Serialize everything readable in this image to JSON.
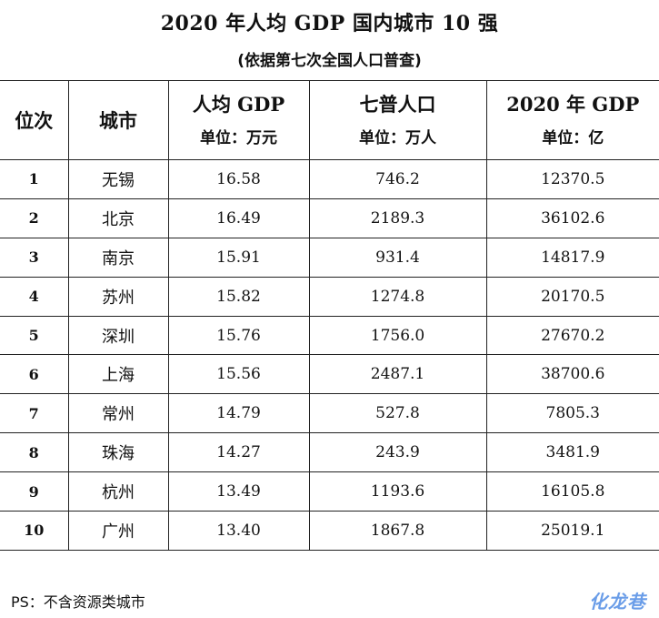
{
  "title": "2020 年人均 GDP 国内城市 10 强",
  "subtitle": "(依据第七次全国人口普查)",
  "table": {
    "headers": {
      "rank": "位次",
      "city": "城市",
      "gdp_per_capita": "人均 GDP",
      "gdp_per_capita_unit": "单位：万元",
      "population": "七普人口",
      "population_unit": "单位：万人",
      "gdp_total": "2020 年 GDP",
      "gdp_total_unit": "单位：亿"
    },
    "rows": [
      {
        "rank": "1",
        "city": "无锡",
        "gdp_per_capita": "16.58",
        "population": "746.2",
        "gdp_total": "12370.5"
      },
      {
        "rank": "2",
        "city": "北京",
        "gdp_per_capita": "16.49",
        "population": "2189.3",
        "gdp_total": "36102.6"
      },
      {
        "rank": "3",
        "city": "南京",
        "gdp_per_capita": "15.91",
        "population": "931.4",
        "gdp_total": "14817.9"
      },
      {
        "rank": "4",
        "city": "苏州",
        "gdp_per_capita": "15.82",
        "population": "1274.8",
        "gdp_total": "20170.5"
      },
      {
        "rank": "5",
        "city": "深圳",
        "gdp_per_capita": "15.76",
        "population": "1756.0",
        "gdp_total": "27670.2"
      },
      {
        "rank": "6",
        "city": "上海",
        "gdp_per_capita": "15.56",
        "population": "2487.1",
        "gdp_total": "38700.6"
      },
      {
        "rank": "7",
        "city": "常州",
        "gdp_per_capita": "14.79",
        "population": "527.8",
        "gdp_total": "7805.3"
      },
      {
        "rank": "8",
        "city": "珠海",
        "gdp_per_capita": "14.27",
        "population": "243.9",
        "gdp_total": "3481.9"
      },
      {
        "rank": "9",
        "city": "杭州",
        "gdp_per_capita": "13.49",
        "population": "1193.6",
        "gdp_total": "16105.8"
      },
      {
        "rank": "10",
        "city": "广州",
        "gdp_per_capita": "13.40",
        "population": "1867.8",
        "gdp_total": "25019.1"
      }
    ]
  },
  "footnote": "PS：不含资源类城市",
  "watermark": "化龙巷",
  "colors": {
    "text": "#111111",
    "border": "#222222",
    "watermark": "#6a9de8"
  }
}
